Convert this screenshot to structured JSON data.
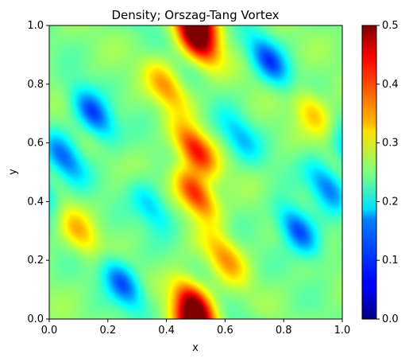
{
  "chart_data": {
    "type": "heatmap",
    "title": "Density; Orszag-Tang Vortex",
    "xlabel": "x",
    "ylabel": "y",
    "xlim": [
      0.0,
      1.0
    ],
    "ylim": [
      0.0,
      1.0
    ],
    "x_ticks": [
      "0.0",
      "0.2",
      "0.4",
      "0.6",
      "0.8",
      "1.0"
    ],
    "y_ticks": [
      "0.0",
      "0.2",
      "0.4",
      "0.6",
      "0.8",
      "1.0"
    ],
    "colormap": "jet",
    "colorbar": {
      "range": [
        0.0,
        0.5
      ],
      "ticks": [
        "0.0",
        "0.1",
        "0.2",
        "0.3",
        "0.4",
        "0.5"
      ]
    },
    "background_level": 0.25,
    "features": [
      {
        "kind": "peak",
        "x": 0.5,
        "y": 0.955,
        "value": 0.49
      },
      {
        "kind": "peak",
        "x": 0.5,
        "y": 0.045,
        "value": 0.49
      },
      {
        "kind": "peak",
        "x": 0.5,
        "y": 0.575,
        "value": 0.43
      },
      {
        "kind": "peak",
        "x": 0.5,
        "y": 0.425,
        "value": 0.43
      },
      {
        "kind": "peak",
        "x": 0.4,
        "y": 0.79,
        "value": 0.36
      },
      {
        "kind": "peak",
        "x": 0.6,
        "y": 0.21,
        "value": 0.36
      },
      {
        "kind": "peak",
        "x": 0.9,
        "y": 0.7,
        "value": 0.34
      },
      {
        "kind": "peak",
        "x": 0.1,
        "y": 0.3,
        "value": 0.34
      },
      {
        "kind": "valley",
        "x": 0.15,
        "y": 0.7,
        "value": 0.09
      },
      {
        "kind": "valley",
        "x": 0.85,
        "y": 0.3,
        "value": 0.09
      },
      {
        "kind": "valley",
        "x": 0.75,
        "y": 0.88,
        "value": 0.1
      },
      {
        "kind": "valley",
        "x": 0.25,
        "y": 0.12,
        "value": 0.1
      },
      {
        "kind": "valley",
        "x": 0.05,
        "y": 0.55,
        "value": 0.12
      },
      {
        "kind": "valley",
        "x": 0.95,
        "y": 0.45,
        "value": 0.12
      },
      {
        "kind": "valley",
        "x": 0.65,
        "y": 0.62,
        "value": 0.16
      },
      {
        "kind": "valley",
        "x": 0.35,
        "y": 0.38,
        "value": 0.16
      }
    ]
  }
}
